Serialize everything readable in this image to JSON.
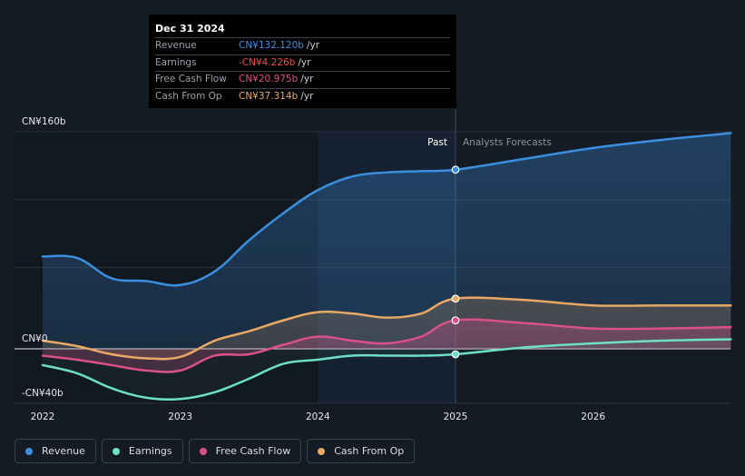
{
  "tooltip": {
    "date": "Dec 31 2024",
    "rows": [
      {
        "label": "Revenue",
        "value": "CN¥132.120b",
        "unit": "/yr",
        "color": "#3b8fe0"
      },
      {
        "label": "Earnings",
        "value": "-CN¥4.226b",
        "unit": "/yr",
        "color": "#ef4d4d"
      },
      {
        "label": "Free Cash Flow",
        "value": "CN¥20.975b",
        "unit": "/yr",
        "color": "#d9508a"
      },
      {
        "label": "Cash From Op",
        "value": "CN¥37.314b",
        "unit": "/yr",
        "color": "#e9a863"
      }
    ]
  },
  "chart_data": {
    "type": "line",
    "xlabel": "",
    "ylabel": "",
    "ylim": [
      -40,
      160
    ],
    "y_tick_labels": [
      {
        "value": 160,
        "label": "CN¥160b"
      },
      {
        "value": 0,
        "label": "CN¥0"
      },
      {
        "value": -40,
        "label": "-CN¥40b"
      }
    ],
    "x_ticks": [
      {
        "value": 2022.0,
        "label": "2022"
      },
      {
        "value": 2023.0,
        "label": "2023"
      },
      {
        "value": 2024.0,
        "label": "2024"
      },
      {
        "value": 2025.0,
        "label": "2025"
      },
      {
        "value": 2026.0,
        "label": "2026"
      }
    ],
    "xlim": [
      2021.9,
      2027.0
    ],
    "split_x": 2025.0,
    "past_label": "Past",
    "forecast_label": "Analysts Forecasts",
    "highlight_range": [
      2024.0,
      2025.0
    ],
    "series": [
      {
        "name": "Revenue",
        "color": "#3b8fe0",
        "x": [
          2022.0,
          2022.25,
          2022.5,
          2022.75,
          2023.0,
          2023.25,
          2023.5,
          2023.75,
          2024.0,
          2024.25,
          2024.5,
          2024.75,
          2025.0,
          2025.5,
          2026.0,
          2026.5,
          2027.0
        ],
        "y": [
          68,
          67,
          52,
          50,
          47,
          57,
          80,
          100,
          117,
          127,
          130,
          131,
          132,
          140,
          148,
          154,
          159
        ]
      },
      {
        "name": "Earnings",
        "color": "#6fe0c8",
        "x": [
          2022.0,
          2022.25,
          2022.5,
          2022.75,
          2023.0,
          2023.25,
          2023.5,
          2023.75,
          2024.0,
          2024.25,
          2024.5,
          2024.75,
          2025.0,
          2025.5,
          2026.0,
          2026.5,
          2027.0
        ],
        "y": [
          -12,
          -18,
          -29,
          -36,
          -37,
          -32,
          -22,
          -11,
          -8,
          -5,
          -5,
          -5,
          -4,
          1,
          4,
          6,
          7
        ]
      },
      {
        "name": "Free Cash Flow",
        "color": "#d9508a",
        "x": [
          2022.0,
          2022.25,
          2022.5,
          2022.75,
          2023.0,
          2023.25,
          2023.5,
          2023.75,
          2024.0,
          2024.25,
          2024.5,
          2024.75,
          2025.0,
          2025.5,
          2026.0,
          2026.5,
          2027.0
        ],
        "y": [
          -5,
          -8,
          -12,
          -16,
          -16,
          -5,
          -4,
          3,
          9,
          6,
          4,
          9,
          21,
          19,
          15,
          15,
          16
        ]
      },
      {
        "name": "Cash From Op",
        "color": "#e9a863",
        "x": [
          2022.0,
          2022.25,
          2022.5,
          2022.75,
          2023.0,
          2023.25,
          2023.5,
          2023.75,
          2024.0,
          2024.25,
          2024.5,
          2024.75,
          2025.0,
          2025.5,
          2026.0,
          2026.5,
          2027.0
        ],
        "y": [
          6,
          2,
          -4,
          -7,
          -6,
          6,
          13,
          21,
          27,
          26,
          23,
          26,
          37,
          36,
          32,
          32,
          32
        ]
      }
    ],
    "tooltip_x": 2025.0
  },
  "legend": [
    {
      "label": "Revenue",
      "color": "#3b8fe0"
    },
    {
      "label": "Earnings",
      "color": "#6fe0c8"
    },
    {
      "label": "Free Cash Flow",
      "color": "#d9508a"
    },
    {
      "label": "Cash From Op",
      "color": "#e9a863"
    }
  ]
}
